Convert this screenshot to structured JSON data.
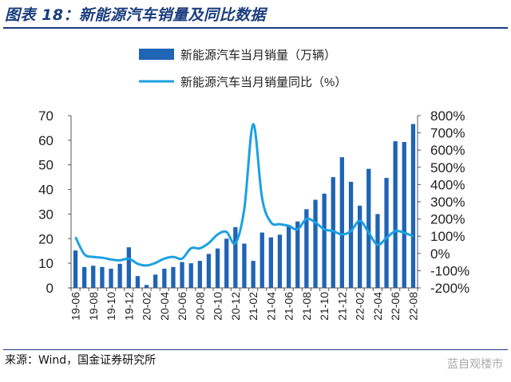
{
  "figure_title": "图表 18：新能源汽车销量及同比数据",
  "source_note": "来源：Wind，国金证券研究所",
  "watermark": "蓝自观楼市",
  "colors": {
    "bar": "#1f64b5",
    "line": "#1ba1e2",
    "title": "#1a3d7c"
  },
  "chart_data": {
    "type": "bar+line",
    "categories": [
      "19-06",
      "19-07",
      "19-08",
      "19-09",
      "19-10",
      "19-11",
      "19-12",
      "20-01",
      "20-02",
      "20-03",
      "20-04",
      "20-05",
      "20-06",
      "20-07",
      "20-08",
      "20-09",
      "20-10",
      "20-11",
      "20-12",
      "21-01",
      "21-02",
      "21-03",
      "21-04",
      "21-05",
      "21-06",
      "21-07",
      "21-08",
      "21-09",
      "21-10",
      "21-11",
      "21-12",
      "22-01",
      "22-02",
      "22-03",
      "22-04",
      "22-05",
      "22-06",
      "22-07",
      "22-08"
    ],
    "tick_labels": [
      "19-06",
      "19-08",
      "19-10",
      "19-12",
      "20-02",
      "20-04",
      "20-06",
      "20-08",
      "20-10",
      "20-12",
      "21-02",
      "21-04",
      "21-06",
      "21-08",
      "21-10",
      "21-12",
      "22-02",
      "22-04",
      "22-06",
      "22-08"
    ],
    "series": [
      {
        "name": "新能源汽车当月销量（万辆）",
        "kind": "bar",
        "axis": "left",
        "values": [
          15.2,
          8.5,
          9.0,
          8.5,
          7.8,
          9.8,
          16.5,
          4.8,
          1.2,
          5.4,
          7.8,
          8.5,
          10.5,
          10.0,
          11.0,
          13.8,
          16.0,
          20.0,
          24.7,
          18.0,
          11.0,
          22.5,
          20.5,
          21.6,
          25.6,
          27.0,
          32.0,
          35.8,
          38.3,
          45.0,
          53.1,
          43.1,
          33.4,
          48.4,
          30.0,
          44.7,
          59.6,
          59.3,
          66.6
        ]
      },
      {
        "name": "新能源汽车当月销量同比（%）",
        "kind": "line",
        "axis": "right",
        "values": [
          95,
          -5,
          -20,
          -25,
          -35,
          -40,
          -30,
          -60,
          -70,
          -55,
          -30,
          -20,
          -30,
          30,
          30,
          60,
          110,
          125,
          60,
          260,
          750,
          320,
          180,
          170,
          160,
          140,
          200,
          180,
          140,
          130,
          110,
          130,
          190,
          120,
          50,
          90,
          130,
          120,
          100
        ]
      }
    ],
    "y_left": {
      "lim": [
        0,
        70
      ],
      "ticks": [
        "0",
        "10",
        "20",
        "30",
        "40",
        "50",
        "60",
        "70"
      ]
    },
    "y_right": {
      "lim": [
        -200,
        800
      ],
      "ticks": [
        "-200%",
        "-100%",
        "0%",
        "100%",
        "200%",
        "300%",
        "400%",
        "500%",
        "600%",
        "700%",
        "800%"
      ]
    },
    "grid": false,
    "legend_position": "top-center"
  }
}
